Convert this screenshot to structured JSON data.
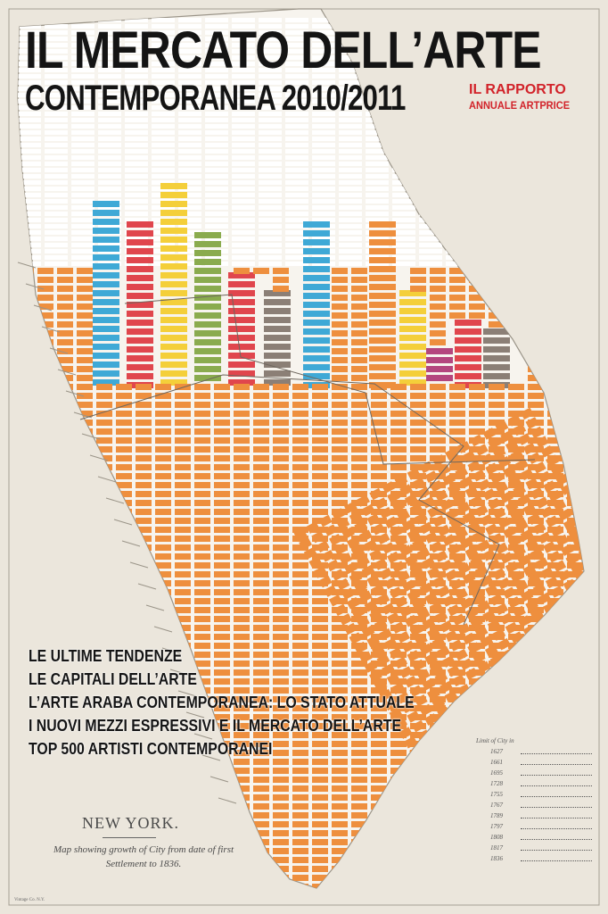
{
  "cover": {
    "title_line1": "IL MERCATO DELL’ARTE",
    "title_line2": "CONTEMPORANEA 2010/2011",
    "report_label": "IL RAPPORTO",
    "report_sub": "ANNUALE ARTPRICE",
    "topics": [
      "LE ULTIME TENDENZE",
      "LE CAPITALI DELL’ARTE",
      "L’ARTE ARABA CONTEMPORANEA: LO STATO ATTUALE",
      "I NUOVI MEZZI ESPRESSIVI E IL MERCATO DELL’ARTE",
      "TOP 500 ARTISTI CONTEMPORANEI"
    ]
  },
  "map": {
    "caption_title": "NEW YORK.",
    "caption_text": "Map showing growth of City from date of first Settlement to 1836.",
    "legend_title": "Limit of City in",
    "legend_years": [
      "1627",
      "1661",
      "1695",
      "1728",
      "1755",
      "1767",
      "1789",
      "1797",
      "1808",
      "1817",
      "1836"
    ],
    "imprint": "Vintage Co. N.Y."
  },
  "colors": {
    "background": "#ebe6dc",
    "orange_blocks": "#ee8f3e",
    "street_grid": "#f7f4ee",
    "title_text": "#141414",
    "accent_red": "#d2232a",
    "cyan": "#3fa9d6",
    "red": "#e0464d",
    "yellow": "#f4cf3a",
    "green": "#8aab4e",
    "grey": "#8b7f76",
    "magenta": "#b4467e"
  }
}
